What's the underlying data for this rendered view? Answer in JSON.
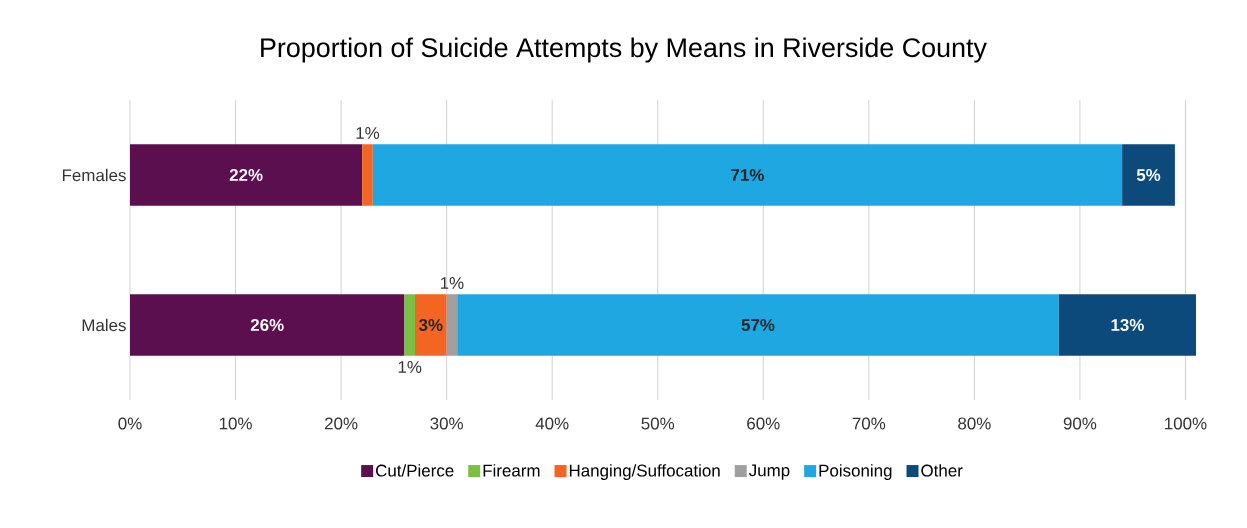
{
  "chart_data": {
    "type": "bar",
    "orientation": "horizontal",
    "stacked": true,
    "title": "Proportion of Suicide Attempts by Means in Riverside County",
    "categories": [
      "Females",
      "Males"
    ],
    "series": [
      {
        "name": "Cut/Pierce",
        "color": "#5c0f4e",
        "values": [
          22,
          26
        ],
        "value_labels": [
          "22%",
          "26%"
        ]
      },
      {
        "name": "Firearm",
        "color": "#7ac143",
        "values": [
          null,
          1
        ],
        "value_labels": [
          null,
          "1%"
        ]
      },
      {
        "name": "Hanging/Suffocation",
        "color": "#f26522",
        "values": [
          1,
          3
        ],
        "value_labels": [
          "1%",
          "3%"
        ]
      },
      {
        "name": "Jump",
        "color": "#a0a0a0",
        "values": [
          null,
          1
        ],
        "value_labels": [
          null,
          "1%"
        ]
      },
      {
        "name": "Poisoning",
        "color": "#1ea7e1",
        "values": [
          71,
          57
        ],
        "value_labels": [
          "71%",
          "57%"
        ]
      },
      {
        "name": "Other",
        "color": "#0b4a7a",
        "values": [
          5,
          13
        ],
        "value_labels": [
          "5%",
          "13%"
        ]
      }
    ],
    "xlim": [
      0,
      101
    ],
    "xticks": [
      {
        "value": 0,
        "label": "0%"
      },
      {
        "value": 10,
        "label": "10%"
      },
      {
        "value": 20,
        "label": "20%"
      },
      {
        "value": 30,
        "label": "30%"
      },
      {
        "value": 40,
        "label": "40%"
      },
      {
        "value": 50,
        "label": "50%"
      },
      {
        "value": 60,
        "label": "60%"
      },
      {
        "value": 70,
        "label": "70%"
      },
      {
        "value": 80,
        "label": "80%"
      },
      {
        "value": 90,
        "label": "90%"
      },
      {
        "value": 100,
        "label": "100%"
      }
    ],
    "grid": "x",
    "legend": "bottom"
  }
}
